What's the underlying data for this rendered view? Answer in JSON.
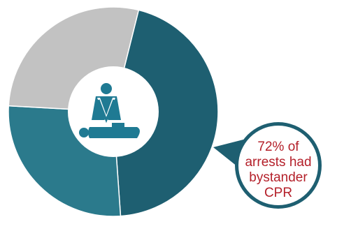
{
  "chart_data": {
    "type": "pie",
    "donut": true,
    "slices": [
      {
        "value": 45,
        "color": "#1e5f71"
      },
      {
        "value": 27,
        "color": "#2b7a8c"
      },
      {
        "value": 28,
        "color": "#c2c2c2"
      }
    ],
    "center_icon": "cpr-person-icon",
    "callout": {
      "lines": [
        "72% of",
        "arrests had",
        "bystander",
        "CPR"
      ],
      "border_color": "#1e5f71",
      "text_color": "#b4202a"
    }
  }
}
